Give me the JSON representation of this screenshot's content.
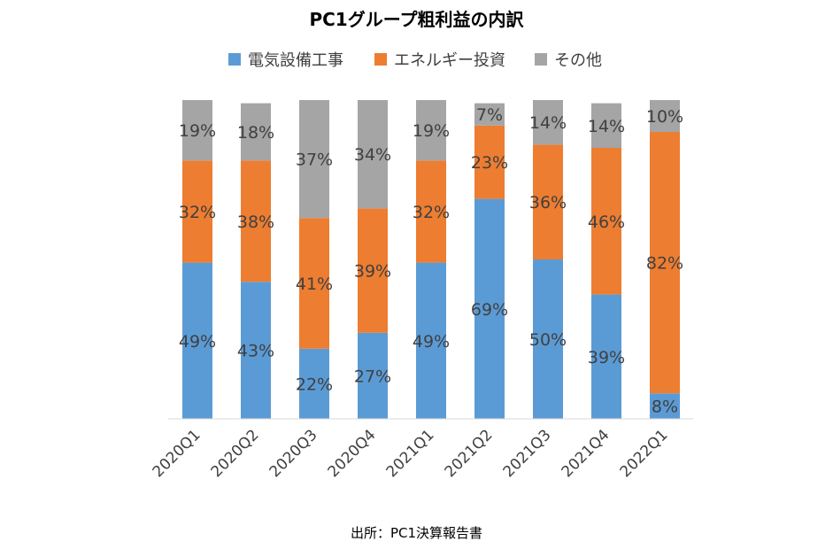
{
  "chart_data": {
    "type": "bar",
    "stacked": true,
    "percent": true,
    "title": "PC1グループ粗利益の内訳",
    "source_note": "出所：PC1決算報告書",
    "categories": [
      "2020Q1",
      "2020Q2",
      "2020Q3",
      "2020Q4",
      "2021Q1",
      "2021Q2",
      "2021Q3",
      "2021Q4",
      "2022Q1"
    ],
    "series": [
      {
        "name": "電気設備工事",
        "color": "#5b9bd5",
        "values": [
          49,
          43,
          22,
          27,
          49,
          69,
          50,
          39,
          8
        ]
      },
      {
        "name": "エネルギー投資",
        "color": "#ed7d31",
        "values": [
          32,
          38,
          41,
          39,
          32,
          23,
          36,
          46,
          82
        ]
      },
      {
        "name": "その他",
        "color": "#a5a5a5",
        "values": [
          19,
          18,
          37,
          34,
          19,
          7,
          14,
          14,
          10
        ]
      }
    ],
    "data_labels": [
      [
        "49%",
        "43%",
        "22%",
        "27%",
        "49%",
        "69%",
        "50%",
        "39%",
        "8%"
      ],
      [
        "32%",
        "38%",
        "41%",
        "39%",
        "32%",
        "23%",
        "36%",
        "46%",
        "82%"
      ],
      [
        "19%",
        "18%",
        "37%",
        "34%",
        "19%",
        "7%",
        "14%",
        "14%",
        "10%"
      ]
    ],
    "legend_position": "top",
    "grid": false,
    "ylim": [
      0,
      100
    ]
  }
}
